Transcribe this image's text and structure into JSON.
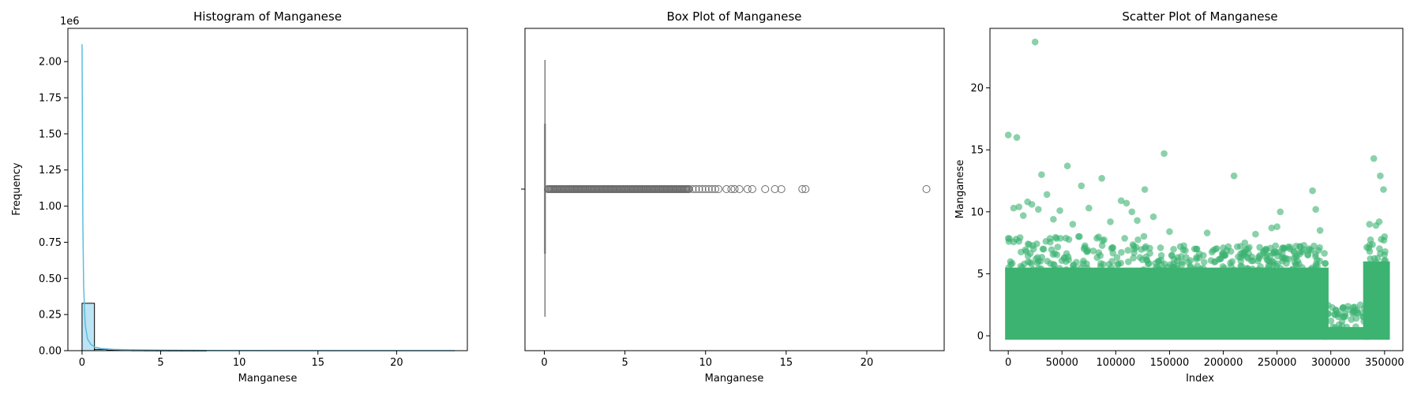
{
  "chart_data": [
    {
      "type": "histogram",
      "title": "Histogram of Manganese",
      "xlabel": "Manganese",
      "ylabel": "Frequency",
      "y_offset_text": "1e6",
      "xlim": [
        -0.9,
        24.5
      ],
      "ylim": [
        0,
        2.23
      ],
      "y_scale_factor": 1000000,
      "xticks": [
        0,
        5,
        10,
        15,
        20
      ],
      "yticks": [
        0.0,
        0.25,
        0.5,
        0.75,
        1.0,
        1.25,
        1.5,
        1.75,
        2.0
      ],
      "ytick_labels": [
        "0.00",
        "0.25",
        "0.50",
        "0.75",
        "1.00",
        "1.25",
        "1.50",
        "1.75",
        "2.00"
      ],
      "bins": [
        {
          "x0": 0.0,
          "x1": 0.79,
          "count": 328000
        },
        {
          "x0": 0.79,
          "x1": 1.58,
          "count": 9000
        },
        {
          "x0": 1.58,
          "x1": 2.37,
          "count": 3500
        },
        {
          "x0": 2.37,
          "x1": 3.16,
          "count": 1800
        },
        {
          "x0": 3.16,
          "x1": 3.95,
          "count": 1000
        },
        {
          "x0": 3.95,
          "x1": 4.74,
          "count": 600
        },
        {
          "x0": 4.74,
          "x1": 5.53,
          "count": 350
        },
        {
          "x0": 5.53,
          "x1": 6.32,
          "count": 200
        },
        {
          "x0": 6.32,
          "x1": 7.11,
          "count": 120
        },
        {
          "x0": 7.11,
          "x1": 7.9,
          "count": 60
        }
      ],
      "kde": {
        "x": [
          0,
          0.02,
          0.05,
          0.1,
          0.2,
          0.35,
          0.55,
          0.8,
          1.2,
          2,
          3,
          5,
          8,
          12,
          16,
          20,
          23.7
        ],
        "y": [
          2120000,
          1650000,
          900000,
          450000,
          180000,
          80000,
          45000,
          25000,
          15000,
          9000,
          6000,
          3500,
          1500,
          500,
          200,
          80,
          20
        ]
      },
      "bar_color": "#87ceeb",
      "kde_color": "#5bbde0"
    },
    {
      "type": "box",
      "title": "Box Plot of Manganese",
      "xlabel": "Manganese",
      "xlim": [
        -1.2,
        24.8
      ],
      "xticks": [
        0,
        5,
        10,
        15,
        20
      ],
      "box": {
        "min": 0.0,
        "q1": 0.02,
        "median": 0.04,
        "q3": 0.1,
        "max": 0.22
      },
      "flier_range_dense": [
        0.22,
        9.0
      ],
      "outliers": [
        9.2,
        9.4,
        9.6,
        9.8,
        10.0,
        10.2,
        10.4,
        10.6,
        10.8,
        11.3,
        11.6,
        11.8,
        12.1,
        12.6,
        12.9,
        13.7,
        14.3,
        14.7,
        16.0,
        16.2,
        23.7
      ],
      "color": "#6d6d6d"
    },
    {
      "type": "scatter",
      "title": "Scatter Plot of Manganese",
      "xlabel": "Index",
      "ylabel": "Manganese",
      "xlim": [
        -17000,
        367000
      ],
      "ylim": [
        -1.2,
        24.8
      ],
      "xticks": [
        0,
        50000,
        100000,
        150000,
        200000,
        250000,
        300000,
        350000
      ],
      "yticks": [
        0,
        5,
        10,
        15,
        20
      ],
      "color": "#3cb371",
      "n_points": 352000,
      "dense_band_segments": [
        {
          "x0": 0,
          "x1": 295000,
          "top": 5.5
        },
        {
          "x0": 295000,
          "x1": 333000,
          "top": 0.7
        },
        {
          "x0": 333000,
          "x1": 352000,
          "top": 6.0
        }
      ],
      "outliers": [
        [
          0,
          16.2
        ],
        [
          8000,
          16.0
        ],
        [
          25000,
          23.7
        ],
        [
          31000,
          13.0
        ],
        [
          55000,
          13.7
        ],
        [
          68000,
          12.1
        ],
        [
          87000,
          12.7
        ],
        [
          145000,
          14.7
        ],
        [
          210000,
          12.9
        ],
        [
          283000,
          11.7
        ],
        [
          340000,
          14.3
        ],
        [
          346000,
          12.9
        ],
        [
          349000,
          11.8
        ],
        [
          5000,
          10.3
        ],
        [
          10000,
          10.4
        ],
        [
          14000,
          9.7
        ],
        [
          18000,
          10.8
        ],
        [
          22000,
          10.6
        ],
        [
          28000,
          10.2
        ],
        [
          36000,
          11.4
        ],
        [
          42000,
          9.4
        ],
        [
          48000,
          10.1
        ],
        [
          60000,
          9.0
        ],
        [
          75000,
          10.3
        ],
        [
          95000,
          9.2
        ],
        [
          105000,
          10.9
        ],
        [
          110000,
          10.7
        ],
        [
          115000,
          10.0
        ],
        [
          120000,
          9.3
        ],
        [
          127000,
          11.8
        ],
        [
          135000,
          9.6
        ],
        [
          150000,
          8.4
        ],
        [
          160000,
          7.2
        ],
        [
          175000,
          7.0
        ],
        [
          185000,
          8.3
        ],
        [
          200000,
          7.1
        ],
        [
          220000,
          7.5
        ],
        [
          230000,
          8.2
        ],
        [
          245000,
          8.7
        ],
        [
          250000,
          8.8
        ],
        [
          253000,
          10.0
        ],
        [
          262000,
          7.0
        ],
        [
          275000,
          7.3
        ],
        [
          286000,
          10.2
        ],
        [
          290000,
          8.5
        ],
        [
          336000,
          9.0
        ],
        [
          342000,
          8.9
        ],
        [
          345000,
          9.2
        ],
        [
          350000,
          8.0
        ]
      ]
    }
  ]
}
